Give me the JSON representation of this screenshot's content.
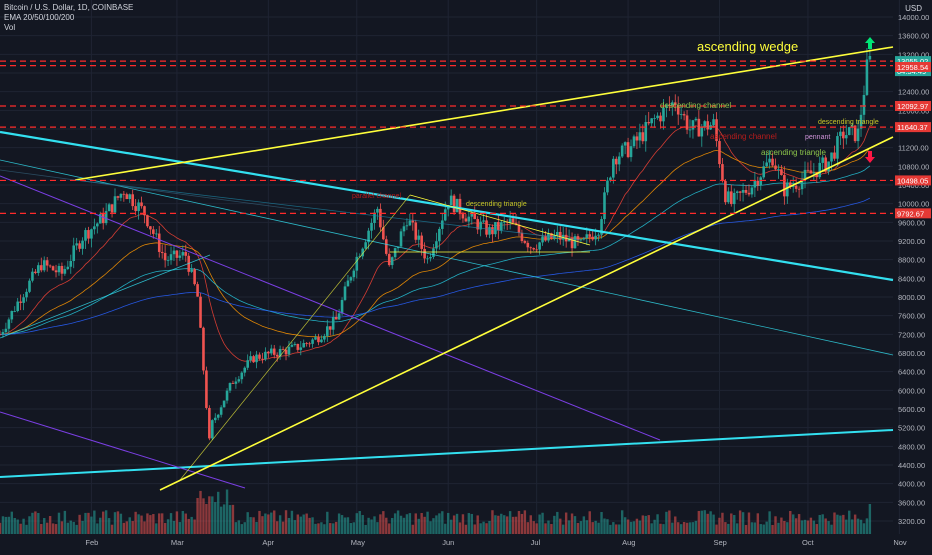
{
  "legend": {
    "symbol": "Bitcoin / U.S. Dollar, 1D, COINBASE",
    "ema": "EMA 20/50/100/200",
    "vol": "Vol"
  },
  "currency": "USD",
  "colors": {
    "background": "#131722",
    "grid": "#1f2433",
    "up": "#26a69a",
    "down": "#ef5350",
    "wedge": "#ffff3b",
    "cyan": "#33e0f0",
    "purple": "#7b3fe4",
    "price_red": "#ff2b2b",
    "axis_text": "#b2b5be"
  },
  "chart_data": {
    "type": "candlestick",
    "title": "Bitcoin / U.S. Dollar, 1D, COINBASE",
    "x_ticks": [
      "Feb",
      "Mar",
      "Apr",
      "May",
      "Jun",
      "Jul",
      "Aug",
      "Sep",
      "Oct",
      "Nov"
    ],
    "y_ticks": [
      14000,
      13600,
      13200,
      12800,
      12400,
      12000,
      11600,
      11200,
      10800,
      10400,
      10000,
      9600,
      9200,
      8800,
      8400,
      8000,
      7600,
      7200,
      6800,
      6400,
      6000,
      5600,
      5200,
      4800,
      4400,
      4000,
      3600,
      3200
    ],
    "ylim": [
      3000,
      14300
    ],
    "grid": true,
    "price_path": [
      [
        "2020-01-01",
        7200
      ],
      [
        "2020-01-08",
        8000
      ],
      [
        "2020-01-15",
        8700
      ],
      [
        "2020-01-22",
        8500
      ],
      [
        "2020-01-29",
        9300
      ],
      [
        "2020-02-05",
        9700
      ],
      [
        "2020-02-12",
        10300
      ],
      [
        "2020-02-19",
        9800
      ],
      [
        "2020-02-26",
        8800
      ],
      [
        "2020-03-04",
        8900
      ],
      [
        "2020-03-08",
        8000
      ],
      [
        "2020-03-12",
        4900
      ],
      [
        "2020-03-13",
        5300
      ],
      [
        "2020-03-20",
        6200
      ],
      [
        "2020-03-27",
        6700
      ],
      [
        "2020-04-03",
        6800
      ],
      [
        "2020-04-10",
        6900
      ],
      [
        "2020-04-17",
        7100
      ],
      [
        "2020-04-24",
        7500
      ],
      [
        "2020-04-30",
        8700
      ],
      [
        "2020-05-08",
        9900
      ],
      [
        "2020-05-12",
        8600
      ],
      [
        "2020-05-18",
        9700
      ],
      [
        "2020-05-25",
        8800
      ],
      [
        "2020-06-01",
        10100
      ],
      [
        "2020-06-08",
        9700
      ],
      [
        "2020-06-15",
        9400
      ],
      [
        "2020-06-22",
        9600
      ],
      [
        "2020-06-29",
        9100
      ],
      [
        "2020-07-08",
        9300
      ],
      [
        "2020-07-16",
        9100
      ],
      [
        "2020-07-22",
        9500
      ],
      [
        "2020-07-27",
        11000
      ],
      [
        "2020-08-02",
        11200
      ],
      [
        "2020-08-10",
        11800
      ],
      [
        "2020-08-17",
        12200
      ],
      [
        "2020-08-22",
        11600
      ],
      [
        "2020-08-30",
        11700
      ],
      [
        "2020-09-03",
        10200
      ],
      [
        "2020-09-05",
        10000
      ],
      [
        "2020-09-12",
        10400
      ],
      [
        "2020-09-19",
        11000
      ],
      [
        "2020-09-23",
        10300
      ],
      [
        "2020-10-01",
        10600
      ],
      [
        "2020-10-08",
        10900
      ],
      [
        "2020-10-13",
        11500
      ],
      [
        "2020-10-18",
        11500
      ],
      [
        "2020-10-21",
        12900
      ],
      [
        "2020-10-22",
        13055
      ]
    ],
    "horizontal_levels": [
      {
        "label": "13055.02",
        "value": 13055.02,
        "type": "current"
      },
      {
        "label": "04:54:49",
        "value": 12958.54,
        "type": "countdown"
      },
      {
        "label": "12958.54",
        "value": 12958.54,
        "type": "level"
      },
      {
        "label": "12092.97",
        "value": 12092.97,
        "type": "level"
      },
      {
        "label": "11640.37",
        "value": 11640.37,
        "type": "level"
      },
      {
        "label": "10498.05",
        "value": 10498.05,
        "type": "level"
      },
      {
        "label": "9792.67",
        "value": 9792.67,
        "type": "level"
      }
    ],
    "annotations": [
      {
        "text": "ascending wedge",
        "color": "#ffff3b"
      },
      {
        "text": "descending channel",
        "color": "#8bc34a"
      },
      {
        "text": "ascending channel",
        "color": "#b71c1c"
      },
      {
        "text": "descending triangle",
        "color": "#c6c628"
      },
      {
        "text": "descending triangle",
        "color": "#c6c628"
      },
      {
        "text": "ascending triangle",
        "color": "#8bc34a"
      },
      {
        "text": "parallel channel",
        "color": "#b71c1c"
      },
      {
        "text": "pennant",
        "color": "#ce93d8"
      }
    ]
  }
}
